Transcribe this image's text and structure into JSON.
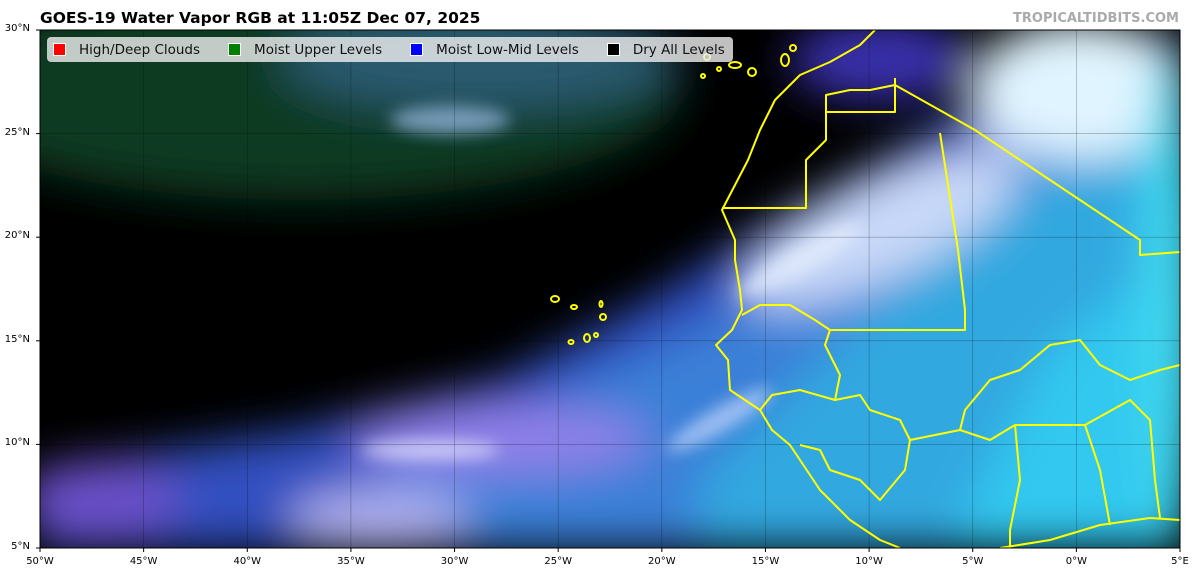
{
  "title": "GOES-19 Water Vapor RGB at 11:05Z Dec 07, 2025",
  "credit": "TROPICALTIDBITS.COM",
  "legend": [
    {
      "label": "High/Deep Clouds",
      "color": "#ff0000"
    },
    {
      "label": "Moist Upper Levels",
      "color": "#008000"
    },
    {
      "label": "Moist Low-Mid Levels",
      "color": "#0000ff"
    },
    {
      "label": "Dry All Levels",
      "color": "#000000"
    }
  ],
  "map": {
    "extent": {
      "lon": [
        -50,
        5
      ],
      "lat": [
        5,
        30
      ]
    },
    "border_color": "#ffff00",
    "y_ticks": [
      "30°N",
      "25°N",
      "20°N",
      "15°N",
      "10°N",
      "5°N"
    ],
    "x_ticks": [
      "50°W",
      "45°W",
      "40°W",
      "35°W",
      "30°W",
      "25°W",
      "20°W",
      "15°W",
      "10°W",
      "5°W",
      "0°W",
      "5°E"
    ]
  }
}
